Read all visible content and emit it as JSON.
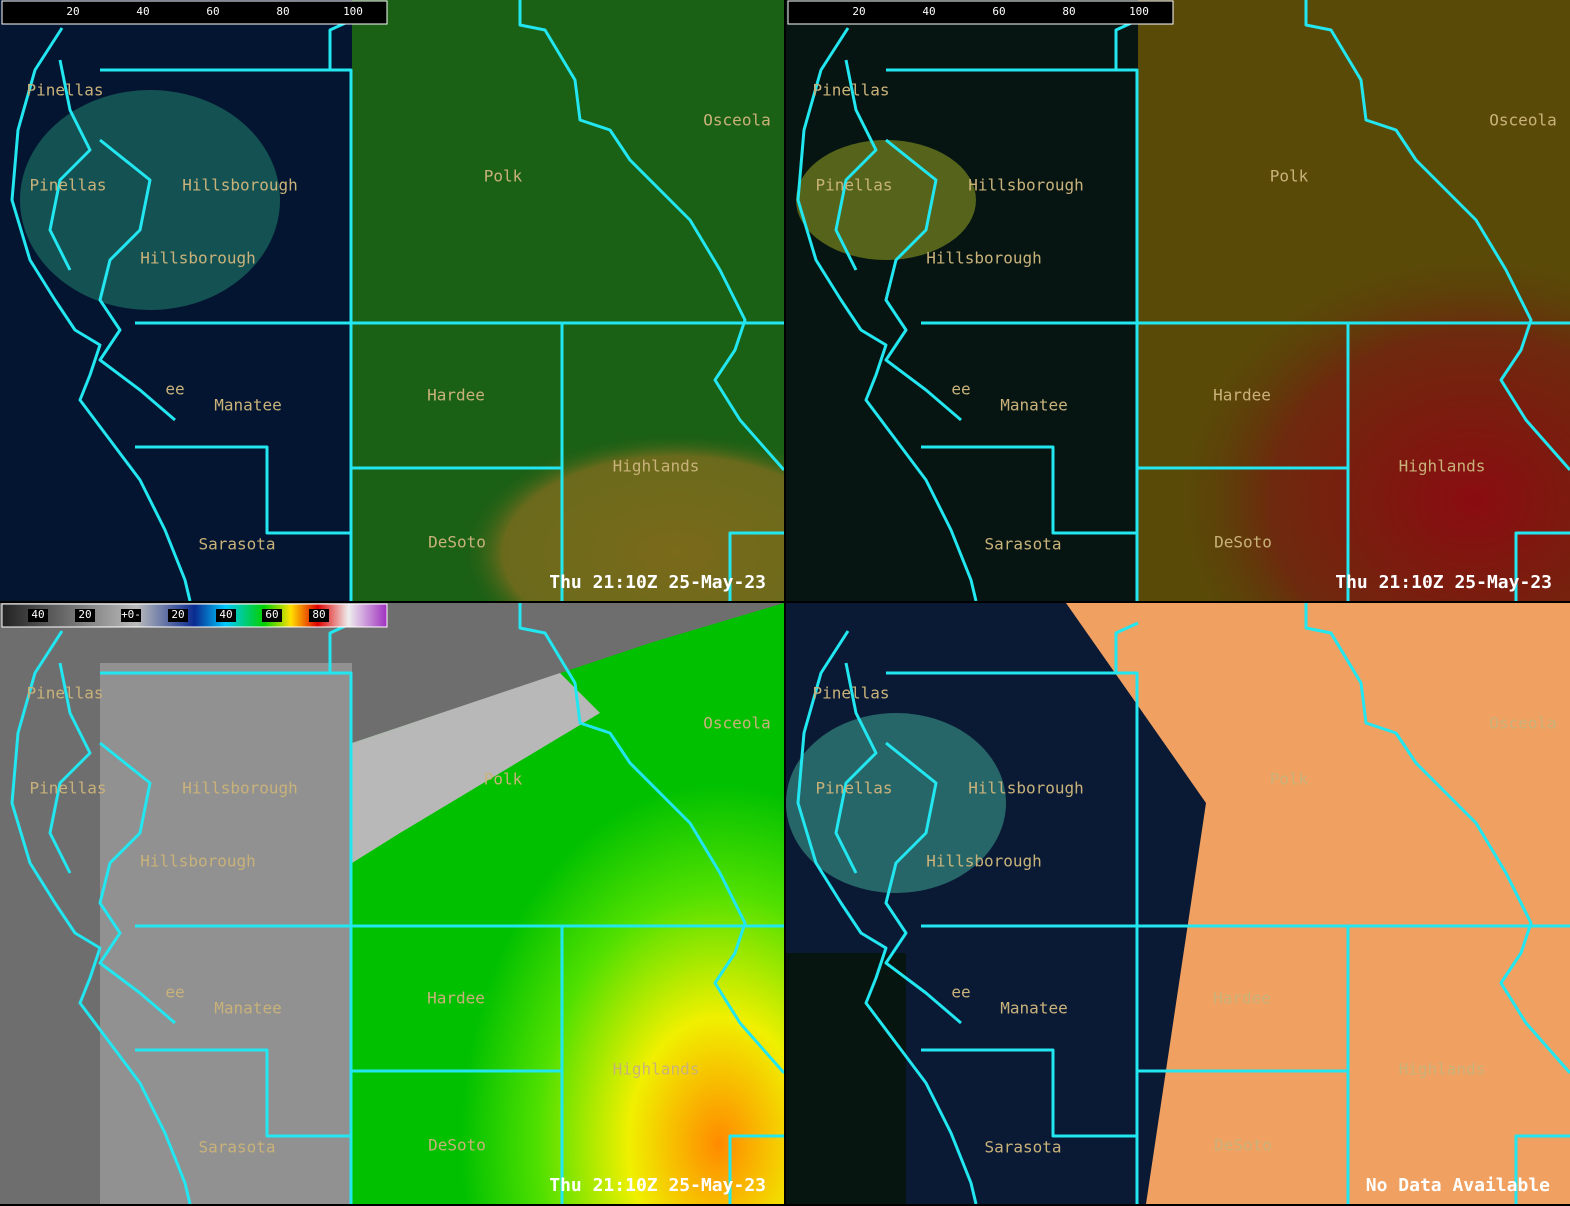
{
  "counties": [
    "Pinellas",
    "Pinellas",
    "Hillsborough",
    "Hillsborough",
    "Polk",
    "Osceola",
    "ee",
    "Manatee",
    "Hardee",
    "Highlands",
    "Sarasota",
    "DeSoto"
  ],
  "panels": [
    {
      "colorbar_ticks": [
        "20",
        "40",
        "60",
        "80",
        "100"
      ],
      "timestamp": "Thu 21:10Z 25-May-23"
    },
    {
      "colorbar_ticks": [
        "20",
        "40",
        "60",
        "80",
        "100"
      ],
      "timestamp": "Thu 21:10Z 25-May-23"
    },
    {
      "colorbar_ticks": [
        "40",
        "20",
        "+0-",
        "20",
        "40",
        "60",
        "80"
      ],
      "timestamp": "Thu 21:10Z 25-May-23"
    },
    {
      "status": "No Data Available"
    }
  ]
}
